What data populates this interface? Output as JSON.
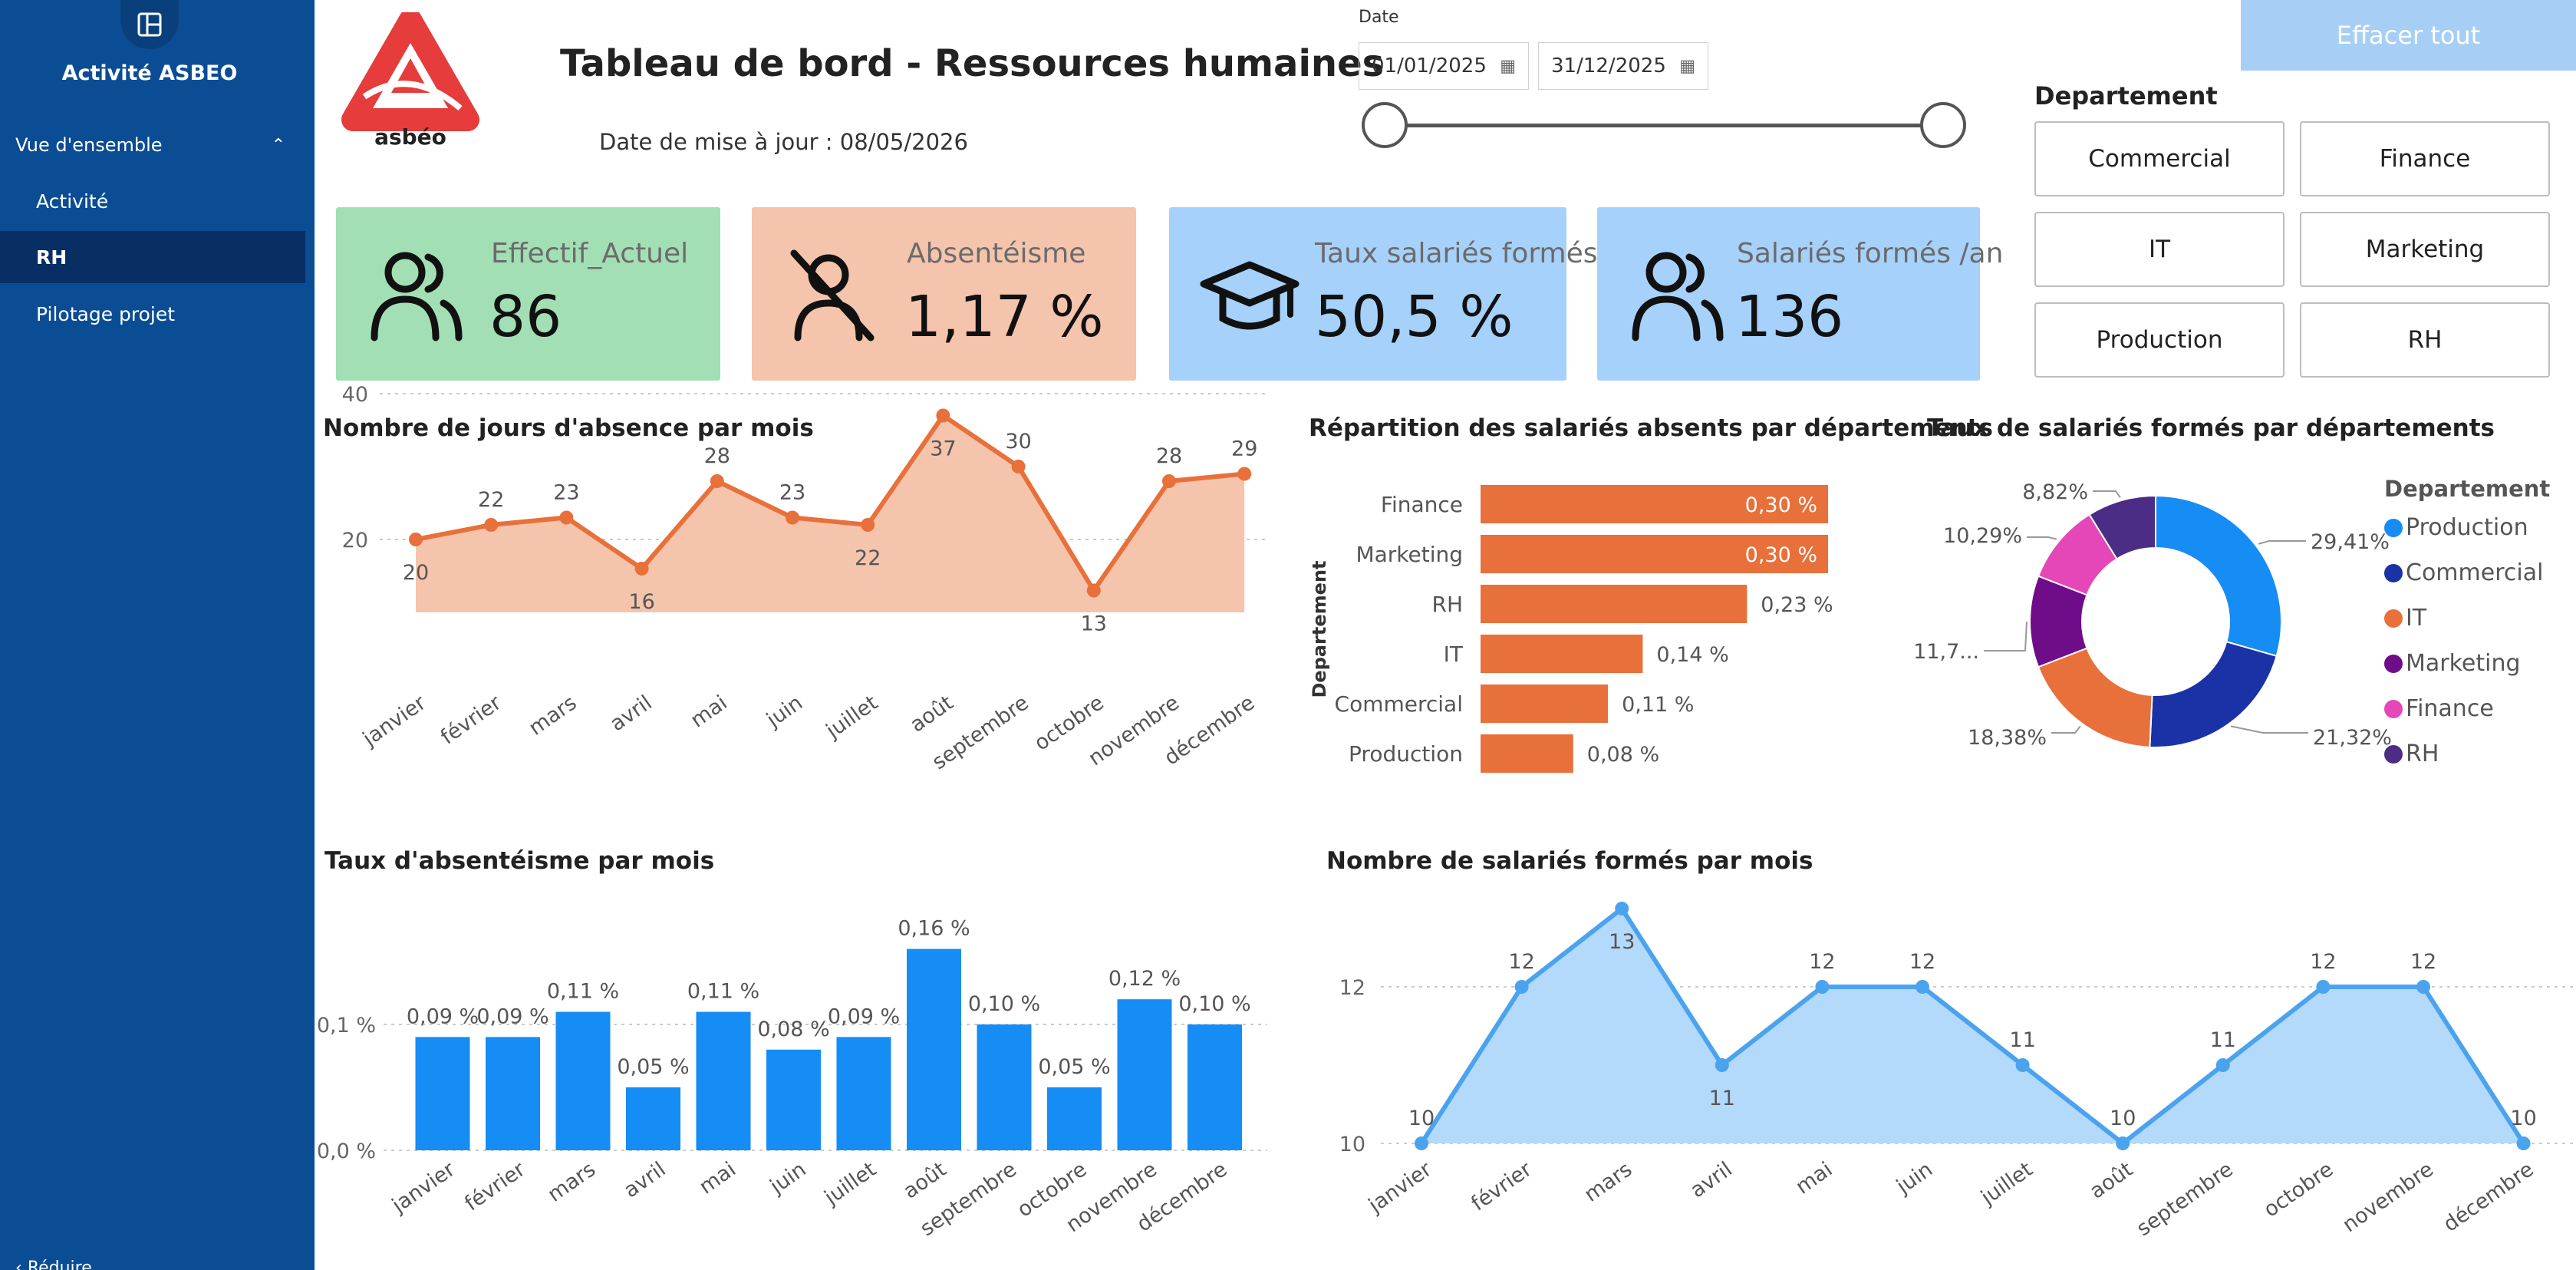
{
  "sidebar": {
    "app_title": "Activité ASBEO",
    "section_label": "Vue d'ensemble",
    "items": [
      {
        "label": "Activité"
      },
      {
        "label": "RH"
      },
      {
        "label": "Pilotage projet"
      }
    ],
    "collapse_label": "Réduire"
  },
  "header": {
    "logo_text": "asbéo",
    "title": "Tableau de bord - Ressources humaines",
    "update_date": "Date de mise à jour : 08/05/2026"
  },
  "date_slicer": {
    "label": "Date",
    "start": "01/01/2025",
    "end": "31/12/2025"
  },
  "clear_button": "Effacer tout",
  "department_slicer": {
    "title": "Departement",
    "options": [
      "Commercial",
      "Finance",
      "IT",
      "Marketing",
      "Production",
      "RH"
    ]
  },
  "kpis": [
    {
      "label": "Effectif_Actuel",
      "value": "86",
      "color": "#a3dfb4",
      "icon": "people-icon"
    },
    {
      "label": "Absentéisme",
      "value": "1,17 %",
      "color": "#f5c4ac",
      "icon": "person-absent-icon"
    },
    {
      "label": "Taux salariés formés",
      "value": "50,5 %",
      "color": "#a6d1fa",
      "icon": "graduation-cap-icon"
    },
    {
      "label": "Salariés formés /an",
      "value": "136",
      "color": "#a6d1fa",
      "icon": "people-icon"
    }
  ],
  "colors": {
    "orange": "#e8703a",
    "orange_fill": "#f5c4ac",
    "blue": "#168cf5",
    "light_blue": "#4ba3ee",
    "light_blue_fill": "#b3d9fb"
  },
  "chart_data": [
    {
      "type": "area",
      "title": "Nombre de jours d'absence par mois",
      "categories": [
        "janvier",
        "février",
        "mars",
        "avril",
        "mai",
        "juin",
        "juillet",
        "août",
        "septembre",
        "octobre",
        "novembre",
        "décembre"
      ],
      "values": [
        20,
        22,
        23,
        16,
        28,
        23,
        22,
        37,
        30,
        13,
        28,
        29
      ],
      "labels": [
        "20",
        "22",
        "23",
        "16",
        "28",
        "23",
        "22",
        "37",
        "30",
        "13",
        "28",
        "29"
      ],
      "yticks": [
        "20",
        "40"
      ],
      "ylim": [
        10,
        40
      ]
    },
    {
      "type": "bar",
      "orientation": "horizontal",
      "title": "Répartition des salariés absents par départements",
      "ylabel": "Departement",
      "categories": [
        "Finance",
        "Marketing",
        "RH",
        "IT",
        "Commercial",
        "Production"
      ],
      "values": [
        0.3,
        0.3,
        0.23,
        0.14,
        0.11,
        0.08
      ],
      "labels": [
        "0,30 %",
        "0,30 %",
        "0,23 %",
        "0,14 %",
        "0,11 %",
        "0,08 %"
      ],
      "xlim": [
        0,
        0.3
      ]
    },
    {
      "type": "pie",
      "title": "Taux de salariés formés par départements",
      "legend_title": "Departement",
      "legend_position": "right",
      "categories": [
        "Production",
        "Commercial",
        "IT",
        "Marketing",
        "Finance",
        "RH"
      ],
      "values": [
        29.41,
        21.32,
        18.38,
        11.76,
        10.29,
        8.82
      ],
      "labels": [
        "29,41%",
        "21,32%",
        "18,38%",
        "11,7...",
        "10,29%",
        "8,82%"
      ],
      "colors": [
        "#168cf5",
        "#1a32a5",
        "#e8703a",
        "#6f0c8a",
        "#e547b8",
        "#4b2d86"
      ]
    },
    {
      "type": "bar",
      "title": "Taux d'absentéisme par mois",
      "categories": [
        "janvier",
        "février",
        "mars",
        "avril",
        "mai",
        "juin",
        "juillet",
        "août",
        "septembre",
        "octobre",
        "novembre",
        "décembre"
      ],
      "values": [
        0.09,
        0.09,
        0.11,
        0.05,
        0.11,
        0.08,
        0.09,
        0.16,
        0.1,
        0.05,
        0.12,
        0.1
      ],
      "labels": [
        "0,09 %",
        "0,09 %",
        "0,11 %",
        "0,05 %",
        "0,11 %",
        "0,08 %",
        "0,09 %",
        "0,16 %",
        "0,10 %",
        "0,05 %",
        "0,12 %",
        "0,10 %"
      ],
      "yticks": [
        "0,0 %",
        "0,1 %"
      ],
      "ylim": [
        0,
        0.16
      ]
    },
    {
      "type": "area",
      "title": "Nombre de salariés formés par mois",
      "categories": [
        "janvier",
        "février",
        "mars",
        "avril",
        "mai",
        "juin",
        "juillet",
        "août",
        "septembre",
        "octobre",
        "novembre",
        "décembre"
      ],
      "values": [
        10,
        12,
        13,
        11,
        12,
        12,
        11,
        10,
        11,
        12,
        12,
        10
      ],
      "labels": [
        "10",
        "12",
        "13",
        "11",
        "12",
        "12",
        "11",
        "10",
        "11",
        "12",
        "12",
        "10"
      ],
      "yticks": [
        "10",
        "12"
      ],
      "ylim": [
        10,
        13
      ]
    }
  ]
}
